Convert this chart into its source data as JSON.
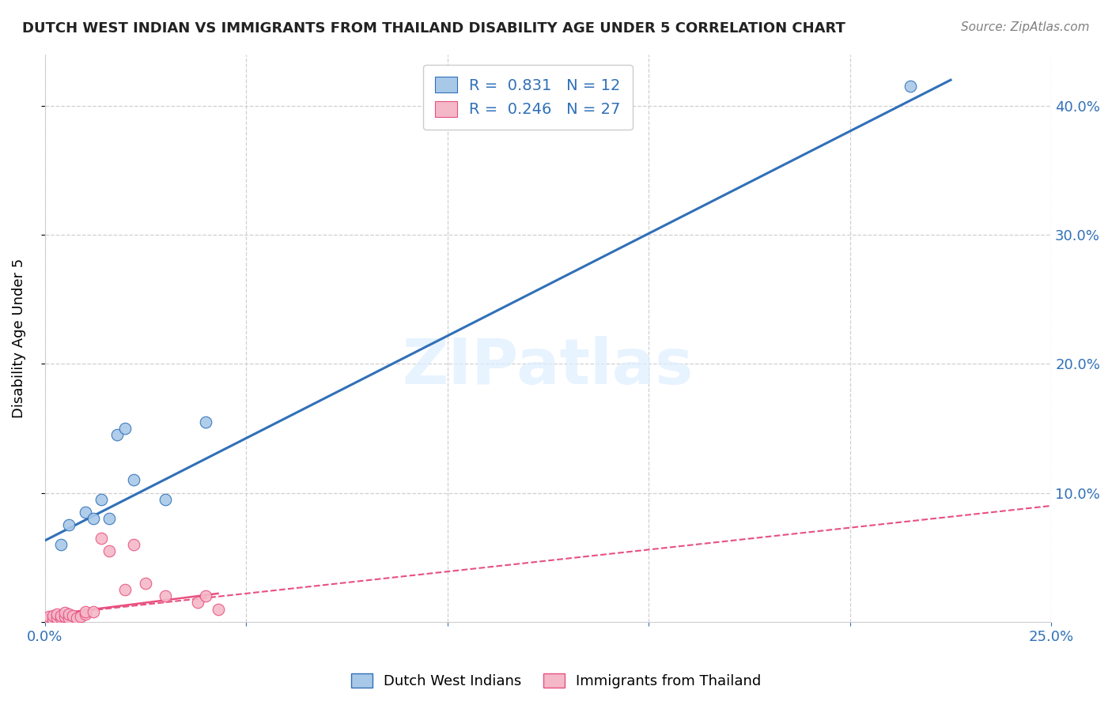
{
  "title": "DUTCH WEST INDIAN VS IMMIGRANTS FROM THAILAND DISABILITY AGE UNDER 5 CORRELATION CHART",
  "source": "Source: ZipAtlas.com",
  "ylabel": "Disability Age Under 5",
  "xlabel": "",
  "xlim": [
    0.0,
    0.25
  ],
  "ylim": [
    0.0,
    0.44
  ],
  "xticks": [
    0.0,
    0.05,
    0.1,
    0.15,
    0.2,
    0.25
  ],
  "xtick_labels": [
    "0.0%",
    "",
    "",
    "",
    "",
    "25.0%"
  ],
  "yticks": [
    0.0,
    0.1,
    0.2,
    0.3,
    0.4
  ],
  "ytick_labels_right": [
    "",
    "10.0%",
    "20.0%",
    "30.0%",
    "40.0%"
  ],
  "blue_R": 0.831,
  "blue_N": 12,
  "pink_R": 0.246,
  "pink_N": 27,
  "blue_color": "#a8c8e8",
  "pink_color": "#f4b8c8",
  "blue_line_color": "#3070b8",
  "pink_line_color": "#e85080",
  "pink_dash_color": "#e85080",
  "watermark_text": "ZIPatlas",
  "legend_label_blue": "Dutch West Indians",
  "legend_label_pink": "Immigrants from Thailand",
  "blue_scatter_x": [
    0.004,
    0.006,
    0.01,
    0.012,
    0.014,
    0.016,
    0.018,
    0.02,
    0.022,
    0.03,
    0.04,
    0.215
  ],
  "blue_scatter_y": [
    0.06,
    0.075,
    0.085,
    0.08,
    0.095,
    0.08,
    0.145,
    0.15,
    0.11,
    0.095,
    0.155,
    0.415
  ],
  "pink_scatter_x": [
    0.001,
    0.001,
    0.002,
    0.002,
    0.003,
    0.003,
    0.004,
    0.004,
    0.005,
    0.005,
    0.006,
    0.006,
    0.007,
    0.008,
    0.009,
    0.01,
    0.01,
    0.012,
    0.014,
    0.016,
    0.02,
    0.022,
    0.025,
    0.03,
    0.038,
    0.04,
    0.043
  ],
  "pink_scatter_y": [
    0.002,
    0.004,
    0.002,
    0.005,
    0.003,
    0.006,
    0.003,
    0.005,
    0.004,
    0.007,
    0.003,
    0.006,
    0.005,
    0.003,
    0.004,
    0.006,
    0.008,
    0.008,
    0.065,
    0.055,
    0.025,
    0.06,
    0.03,
    0.02,
    0.015,
    0.02,
    0.01
  ],
  "blue_trend_x": [
    0.0,
    0.225
  ],
  "blue_trend_y": [
    0.063,
    0.42
  ],
  "pink_solid_trend_x": [
    0.0,
    0.043
  ],
  "pink_solid_trend_y": [
    0.005,
    0.022
  ],
  "pink_dash_trend_x": [
    0.0,
    0.25
  ],
  "pink_dash_trend_y": [
    0.005,
    0.09
  ],
  "background_color": "#ffffff",
  "grid_color": "#d0d0d0",
  "title_color": "#222222",
  "tick_color": "#3070b8"
}
